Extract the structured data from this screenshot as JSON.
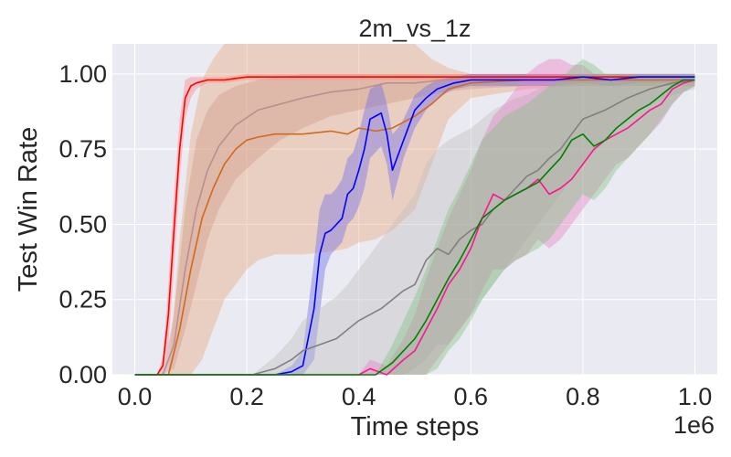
{
  "chart_data": {
    "type": "line",
    "title": "2m_vs_1z",
    "xlabel": "Time steps",
    "ylabel": "Test Win Rate",
    "x_multiplier_label": "1e6",
    "xlim": [
      -0.04,
      1.04
    ],
    "ylim": [
      0.0,
      1.1
    ],
    "xticks": [
      0.0,
      0.2,
      0.4,
      0.6,
      0.8,
      1.0
    ],
    "xtick_labels": [
      "0.0",
      "0.2",
      "0.4",
      "0.6",
      "0.8",
      "1.0"
    ],
    "yticks": [
      0.0,
      0.25,
      0.5,
      0.75,
      1.0
    ],
    "ytick_labels": [
      "0.00",
      "0.25",
      "0.50",
      "0.75",
      "1.00"
    ],
    "grid": true,
    "background": "#eaeaf2",
    "series": [
      {
        "color": "#ff0000",
        "x": [
          0.0,
          0.04,
          0.05,
          0.06,
          0.07,
          0.08,
          0.09,
          0.1,
          0.11,
          0.13,
          0.16,
          0.2,
          0.3,
          0.4,
          0.5,
          0.6,
          0.7,
          0.8,
          0.9,
          1.0
        ],
        "y": [
          0.0,
          0.0,
          0.03,
          0.2,
          0.48,
          0.75,
          0.92,
          0.96,
          0.97,
          0.98,
          0.98,
          0.99,
          0.99,
          0.99,
          0.99,
          0.99,
          0.99,
          0.99,
          0.99,
          0.99
        ],
        "lower": [
          0.0,
          0.0,
          0.0,
          0.1,
          0.35,
          0.65,
          0.85,
          0.92,
          0.95,
          0.97,
          0.97,
          0.98,
          0.98,
          0.98,
          0.98,
          0.98,
          0.98,
          0.98,
          0.98,
          0.98
        ],
        "upper": [
          0.0,
          0.0,
          0.06,
          0.3,
          0.6,
          0.85,
          0.98,
          0.99,
          0.99,
          0.99,
          0.99,
          1.0,
          1.0,
          1.0,
          1.0,
          1.0,
          1.0,
          1.0,
          1.0,
          1.0
        ],
        "band_color": "#ff8080"
      },
      {
        "color": "#bc8f8f",
        "x": [
          0.0,
          0.05,
          0.07,
          0.09,
          0.11,
          0.13,
          0.15,
          0.18,
          0.22,
          0.26,
          0.3,
          0.35,
          0.4,
          0.45,
          0.5,
          0.55,
          0.6,
          0.7,
          0.8,
          0.9,
          1.0
        ],
        "y": [
          0.0,
          0.0,
          0.1,
          0.35,
          0.55,
          0.68,
          0.76,
          0.83,
          0.88,
          0.9,
          0.92,
          0.94,
          0.95,
          0.97,
          0.97,
          0.98,
          0.98,
          0.98,
          0.98,
          0.98,
          0.98
        ],
        "lower": [
          0.0,
          0.0,
          0.02,
          0.15,
          0.3,
          0.45,
          0.55,
          0.65,
          0.72,
          0.78,
          0.82,
          0.86,
          0.88,
          0.9,
          0.92,
          0.94,
          0.95,
          0.96,
          0.96,
          0.96,
          0.96
        ],
        "upper": [
          0.0,
          0.0,
          0.2,
          0.55,
          0.78,
          0.88,
          0.93,
          0.96,
          0.98,
          0.99,
          1.0,
          1.0,
          1.0,
          1.0,
          1.0,
          1.0,
          1.0,
          1.0,
          1.0,
          1.0,
          1.0
        ],
        "band_color": "#bc8f8f"
      },
      {
        "color": "#d2691e",
        "x": [
          0.0,
          0.06,
          0.08,
          0.1,
          0.12,
          0.14,
          0.16,
          0.18,
          0.2,
          0.22,
          0.25,
          0.3,
          0.35,
          0.38,
          0.4,
          0.43,
          0.46,
          0.5,
          0.53,
          0.56,
          0.6,
          0.7,
          0.8,
          0.9,
          1.0
        ],
        "y": [
          0.0,
          0.0,
          0.15,
          0.35,
          0.52,
          0.62,
          0.7,
          0.75,
          0.78,
          0.79,
          0.8,
          0.8,
          0.81,
          0.8,
          0.82,
          0.81,
          0.82,
          0.86,
          0.9,
          0.95,
          0.97,
          0.98,
          0.98,
          0.98,
          0.98
        ],
        "lower": [
          0.0,
          0.0,
          0.0,
          0.0,
          0.05,
          0.15,
          0.25,
          0.3,
          0.35,
          0.38,
          0.4,
          0.4,
          0.41,
          0.42,
          0.44,
          0.45,
          0.48,
          0.55,
          0.7,
          0.85,
          0.92,
          0.95,
          0.96,
          0.96,
          0.96
        ],
        "upper": [
          0.0,
          0.0,
          0.45,
          0.8,
          0.98,
          1.05,
          1.1,
          1.1,
          1.1,
          1.1,
          1.1,
          1.1,
          1.1,
          1.1,
          1.1,
          1.1,
          1.1,
          1.1,
          1.05,
          1.02,
          1.0,
          1.0,
          1.0,
          1.0,
          1.0
        ],
        "band_color": "#e8a878"
      },
      {
        "color": "#0000ff",
        "x": [
          0.0,
          0.19,
          0.25,
          0.28,
          0.3,
          0.32,
          0.33,
          0.34,
          0.35,
          0.36,
          0.37,
          0.38,
          0.39,
          0.4,
          0.41,
          0.42,
          0.43,
          0.44,
          0.45,
          0.46,
          0.47,
          0.48,
          0.5,
          0.52,
          0.54,
          0.57,
          0.6,
          0.65,
          0.7,
          0.75,
          0.8,
          0.85,
          0.9,
          1.0
        ],
        "y": [
          0.0,
          0.0,
          0.0,
          0.01,
          0.03,
          0.22,
          0.4,
          0.47,
          0.48,
          0.5,
          0.52,
          0.6,
          0.62,
          0.68,
          0.75,
          0.85,
          0.86,
          0.87,
          0.8,
          0.68,
          0.73,
          0.78,
          0.88,
          0.92,
          0.95,
          0.97,
          0.98,
          0.98,
          0.98,
          0.98,
          0.99,
          0.98,
          0.99,
          0.99
        ],
        "lower": [
          0.0,
          0.0,
          0.0,
          0.0,
          0.0,
          0.05,
          0.2,
          0.35,
          0.4,
          0.42,
          0.44,
          0.5,
          0.52,
          0.56,
          0.62,
          0.72,
          0.74,
          0.76,
          0.7,
          0.58,
          0.65,
          0.72,
          0.82,
          0.88,
          0.92,
          0.95,
          0.96,
          0.96,
          0.96,
          0.96,
          0.97,
          0.96,
          0.97,
          0.97
        ],
        "upper": [
          0.0,
          0.0,
          0.0,
          0.03,
          0.08,
          0.38,
          0.55,
          0.6,
          0.6,
          0.62,
          0.65,
          0.72,
          0.74,
          0.8,
          0.88,
          0.95,
          0.96,
          0.97,
          0.9,
          0.8,
          0.82,
          0.85,
          0.93,
          0.96,
          0.98,
          0.99,
          1.0,
          1.0,
          1.0,
          1.0,
          1.0,
          1.0,
          1.0,
          1.0
        ],
        "band_color": "#6a6ae8"
      },
      {
        "color": "#808080",
        "x": [
          0.0,
          0.21,
          0.25,
          0.28,
          0.3,
          0.33,
          0.36,
          0.38,
          0.4,
          0.42,
          0.44,
          0.46,
          0.48,
          0.5,
          0.52,
          0.54,
          0.56,
          0.58,
          0.6,
          0.62,
          0.64,
          0.66,
          0.68,
          0.7,
          0.72,
          0.74,
          0.76,
          0.78,
          0.8,
          0.84,
          0.88,
          0.92,
          0.96,
          1.0
        ],
        "y": [
          0.0,
          0.0,
          0.02,
          0.05,
          0.08,
          0.1,
          0.12,
          0.15,
          0.18,
          0.2,
          0.22,
          0.25,
          0.28,
          0.3,
          0.38,
          0.42,
          0.4,
          0.45,
          0.48,
          0.5,
          0.55,
          0.58,
          0.62,
          0.66,
          0.68,
          0.72,
          0.75,
          0.8,
          0.85,
          0.88,
          0.92,
          0.95,
          0.97,
          0.98
        ],
        "lower": [
          0.0,
          0.0,
          0.0,
          0.0,
          0.0,
          0.0,
          0.0,
          0.0,
          0.0,
          0.0,
          0.0,
          0.0,
          0.0,
          0.02,
          0.05,
          0.1,
          0.1,
          0.15,
          0.2,
          0.25,
          0.3,
          0.35,
          0.4,
          0.45,
          0.5,
          0.55,
          0.6,
          0.65,
          0.7,
          0.78,
          0.85,
          0.9,
          0.93,
          0.95
        ],
        "upper": [
          0.0,
          0.0,
          0.06,
          0.12,
          0.18,
          0.22,
          0.26,
          0.3,
          0.35,
          0.4,
          0.45,
          0.5,
          0.55,
          0.6,
          0.7,
          0.75,
          0.78,
          0.8,
          0.82,
          0.85,
          0.88,
          0.9,
          0.92,
          0.93,
          0.95,
          0.96,
          0.97,
          0.98,
          0.99,
          1.0,
          1.0,
          1.0,
          1.0,
          1.0
        ],
        "band_color": "#bdbdbd"
      },
      {
        "color": "#ff1493",
        "x": [
          0.0,
          0.4,
          0.42,
          0.45,
          0.48,
          0.5,
          0.52,
          0.54,
          0.56,
          0.58,
          0.6,
          0.62,
          0.64,
          0.66,
          0.68,
          0.7,
          0.72,
          0.74,
          0.76,
          0.78,
          0.8,
          0.82,
          0.84,
          0.86,
          0.88,
          0.9,
          0.92,
          0.94,
          0.96,
          0.98,
          1.0
        ],
        "y": [
          0.0,
          0.0,
          0.02,
          0.0,
          0.05,
          0.08,
          0.15,
          0.22,
          0.3,
          0.35,
          0.42,
          0.52,
          0.6,
          0.58,
          0.6,
          0.62,
          0.65,
          0.6,
          0.62,
          0.65,
          0.7,
          0.75,
          0.78,
          0.8,
          0.82,
          0.85,
          0.88,
          0.9,
          0.95,
          0.97,
          0.98
        ],
        "lower": [
          0.0,
          0.0,
          0.0,
          0.0,
          0.0,
          0.0,
          0.0,
          0.05,
          0.1,
          0.15,
          0.2,
          0.28,
          0.35,
          0.35,
          0.38,
          0.4,
          0.45,
          0.42,
          0.45,
          0.5,
          0.55,
          0.6,
          0.65,
          0.7,
          0.72,
          0.76,
          0.8,
          0.84,
          0.9,
          0.94,
          0.96
        ],
        "upper": [
          0.0,
          0.0,
          0.05,
          0.03,
          0.12,
          0.2,
          0.32,
          0.42,
          0.52,
          0.6,
          0.68,
          0.78,
          0.86,
          0.9,
          0.95,
          1.0,
          1.03,
          1.05,
          1.05,
          1.03,
          1.03,
          1.0,
          1.0,
          1.0,
          1.0,
          1.0,
          1.0,
          1.0,
          1.0,
          1.0,
          1.0
        ],
        "band_color": "#e87ec2"
      },
      {
        "color": "#008000",
        "x": [
          0.0,
          0.43,
          0.46,
          0.48,
          0.5,
          0.52,
          0.54,
          0.56,
          0.58,
          0.6,
          0.62,
          0.64,
          0.66,
          0.68,
          0.7,
          0.72,
          0.74,
          0.76,
          0.78,
          0.8,
          0.82,
          0.84,
          0.86,
          0.88,
          0.9,
          0.92,
          0.94,
          0.96,
          0.98,
          1.0
        ],
        "y": [
          0.0,
          0.0,
          0.04,
          0.08,
          0.12,
          0.18,
          0.25,
          0.32,
          0.38,
          0.45,
          0.52,
          0.55,
          0.58,
          0.6,
          0.62,
          0.64,
          0.68,
          0.72,
          0.78,
          0.8,
          0.76,
          0.78,
          0.82,
          0.85,
          0.88,
          0.9,
          0.93,
          0.96,
          0.98,
          0.98
        ],
        "lower": [
          0.0,
          0.0,
          0.0,
          0.0,
          0.0,
          0.0,
          0.02,
          0.08,
          0.12,
          0.18,
          0.25,
          0.3,
          0.35,
          0.38,
          0.4,
          0.42,
          0.45,
          0.5,
          0.55,
          0.6,
          0.58,
          0.62,
          0.68,
          0.72,
          0.76,
          0.8,
          0.85,
          0.9,
          0.94,
          0.96
        ],
        "upper": [
          0.0,
          0.0,
          0.1,
          0.18,
          0.26,
          0.35,
          0.45,
          0.55,
          0.62,
          0.7,
          0.78,
          0.82,
          0.86,
          0.88,
          0.9,
          0.93,
          0.96,
          0.98,
          1.02,
          1.05,
          1.03,
          1.0,
          1.0,
          1.0,
          1.0,
          1.0,
          1.0,
          1.0,
          1.0,
          1.0
        ],
        "band_color": "#7cc27c"
      }
    ]
  }
}
